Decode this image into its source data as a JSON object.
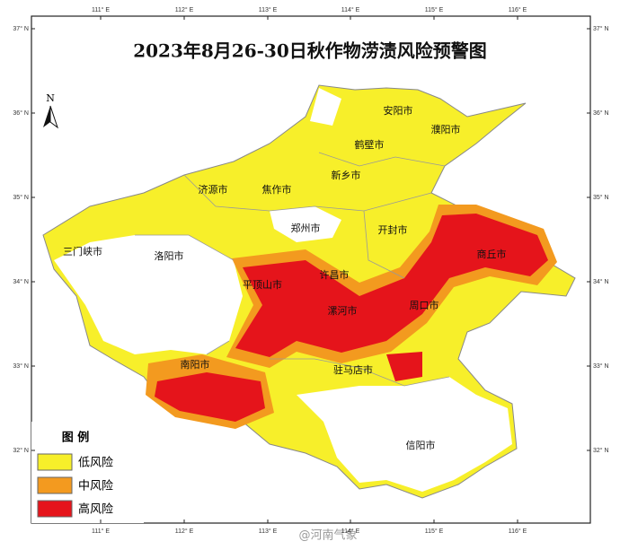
{
  "title": "2023年8月26-30日秋作物涝渍风险预警图",
  "lon_ticks": [
    "111° E",
    "112° E",
    "113° E",
    "114° E",
    "115° E",
    "116° E"
  ],
  "lat_ticks": [
    "37° N",
    "36° N",
    "35° N",
    "34° N",
    "33° N",
    "32° N"
  ],
  "north": "N",
  "cities": [
    "安阳市",
    "濮阳市",
    "鹤壁市",
    "新乡市",
    "济源市",
    "焦作市",
    "三门峡市",
    "洛阳市",
    "郑州市",
    "开封市",
    "商丘市",
    "许昌市",
    "平顶山市",
    "漯河市",
    "周口市",
    "南阳市",
    "驻马店市",
    "信阳市"
  ],
  "legend": {
    "title": "图 例",
    "items": [
      "低风险",
      "中风险",
      "高风险"
    ]
  },
  "watermark": "@河南气象"
}
